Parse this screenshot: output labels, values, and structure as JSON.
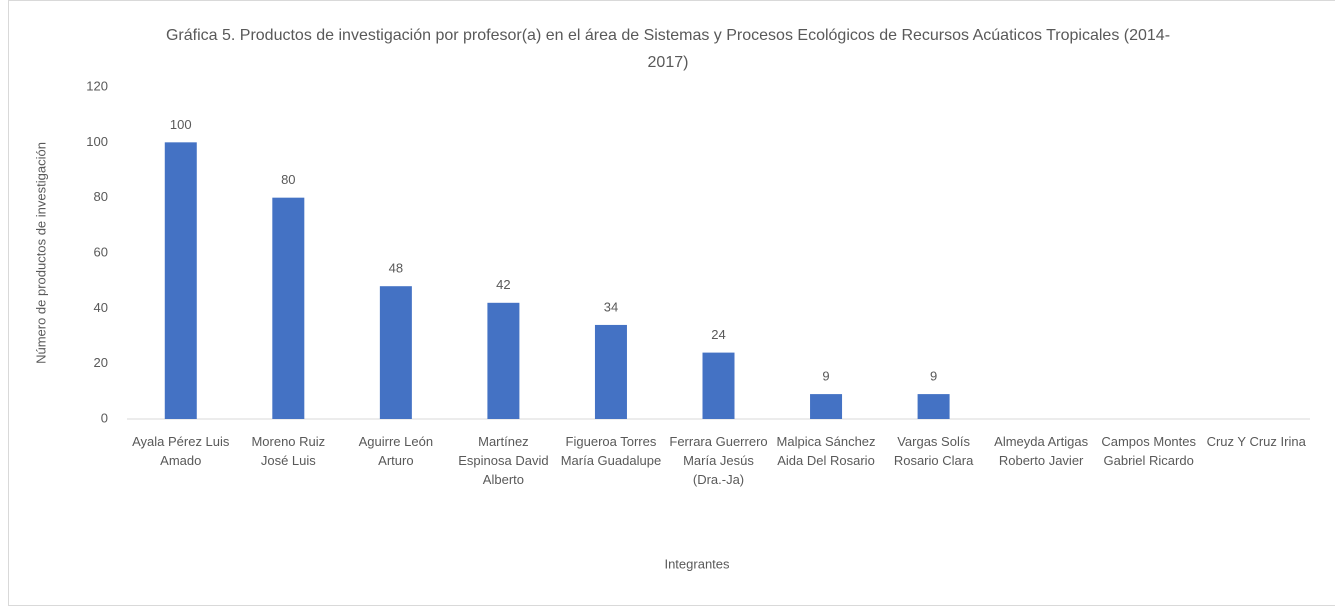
{
  "chart_data": {
    "type": "bar",
    "title": "Gráfica 5. Productos de investigación por profesor(a) en el área de Sistemas y Procesos Ecológicos de Recursos Acúaticos Tropicales (2014-2017)",
    "x_label": "Integrantes",
    "y_label": "Número de productos de investigación",
    "categories": [
      "Ayala Pérez Luis Amado",
      "Moreno Ruiz José Luis",
      "Aguirre León Arturo",
      "Martínez Espinosa David Alberto",
      "Figueroa Torres María Guadalupe",
      "Ferrara Guerrero María Jesús (Dra.-Ja)",
      "Malpica Sánchez Aida Del Rosario",
      "Vargas Solís Rosario Clara",
      "Almeyda Artigas Roberto Javier",
      "Campos Montes Gabriel Ricardo",
      "Cruz Y Cruz Irina"
    ],
    "values": [
      100,
      80,
      48,
      42,
      34,
      24,
      9,
      9,
      null,
      null,
      null
    ],
    "color": "#4472c4",
    "ylim": [
      0,
      120
    ],
    "yticks": [
      0,
      20,
      40,
      60,
      80,
      100,
      120
    ],
    "grid": false
  }
}
